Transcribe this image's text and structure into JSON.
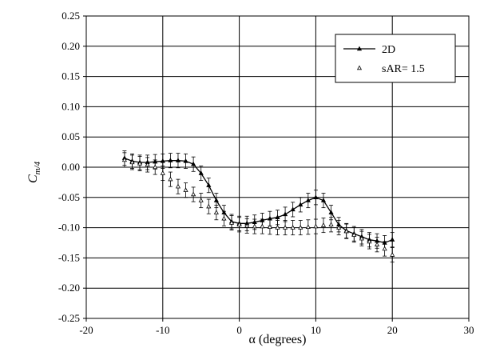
{
  "chart_data": {
    "type": "line",
    "xlabel": "α (degrees)",
    "ylabel": "C",
    "ylabel_sub": "m/4",
    "xlim": [
      -20,
      30
    ],
    "ylim": [
      -0.25,
      0.25
    ],
    "xticks": [
      "-20",
      "-10",
      "0",
      "10",
      "20",
      "30"
    ],
    "yticks": [
      "0.25",
      "0.20",
      "0.15",
      "0.10",
      "0.05",
      "0.00",
      "-0.05",
      "-0.10",
      "-0.15",
      "-0.20",
      "-0.25"
    ],
    "grid": true,
    "legend_position": "top-right",
    "series": [
      {
        "name": "2D",
        "style": "line-with-markers",
        "error": 0.012,
        "x": [
          -15,
          -14,
          -13,
          -12,
          -11,
          -10,
          -9,
          -8,
          -7,
          -6,
          -5,
          -4,
          -3,
          -2,
          -1,
          0,
          1,
          2,
          3,
          4,
          5,
          6,
          7,
          8,
          9,
          10,
          11,
          12,
          13,
          14,
          15,
          16,
          17,
          18,
          19,
          20
        ],
        "y": [
          0.015,
          0.01,
          0.008,
          0.008,
          0.009,
          0.01,
          0.011,
          0.011,
          0.01,
          0.005,
          -0.01,
          -0.03,
          -0.055,
          -0.075,
          -0.09,
          -0.093,
          -0.093,
          -0.091,
          -0.088,
          -0.085,
          -0.083,
          -0.078,
          -0.07,
          -0.062,
          -0.055,
          -0.05,
          -0.055,
          -0.075,
          -0.095,
          -0.105,
          -0.11,
          -0.115,
          -0.12,
          -0.122,
          -0.125,
          -0.12
        ]
      },
      {
        "name": "sAR= 1.5",
        "style": "markers",
        "error": 0.012,
        "x": [
          -15,
          -14,
          -13,
          -12,
          -11,
          -10,
          -9,
          -8,
          -7,
          -6,
          -5,
          -4,
          -3,
          -2,
          -1,
          0,
          1,
          2,
          3,
          4,
          5,
          6,
          7,
          8,
          9,
          10,
          11,
          12,
          13,
          14,
          15,
          16,
          17,
          18,
          19,
          20
        ],
        "y": [
          0.012,
          0.008,
          0.006,
          0.004,
          0.0,
          -0.01,
          -0.02,
          -0.032,
          -0.038,
          -0.045,
          -0.055,
          -0.065,
          -0.075,
          -0.085,
          -0.092,
          -0.095,
          -0.097,
          -0.098,
          -0.098,
          -0.099,
          -0.1,
          -0.1,
          -0.1,
          -0.1,
          -0.099,
          -0.098,
          -0.096,
          -0.095,
          -0.1,
          -0.106,
          -0.112,
          -0.118,
          -0.123,
          -0.128,
          -0.135,
          -0.145
        ]
      }
    ]
  }
}
